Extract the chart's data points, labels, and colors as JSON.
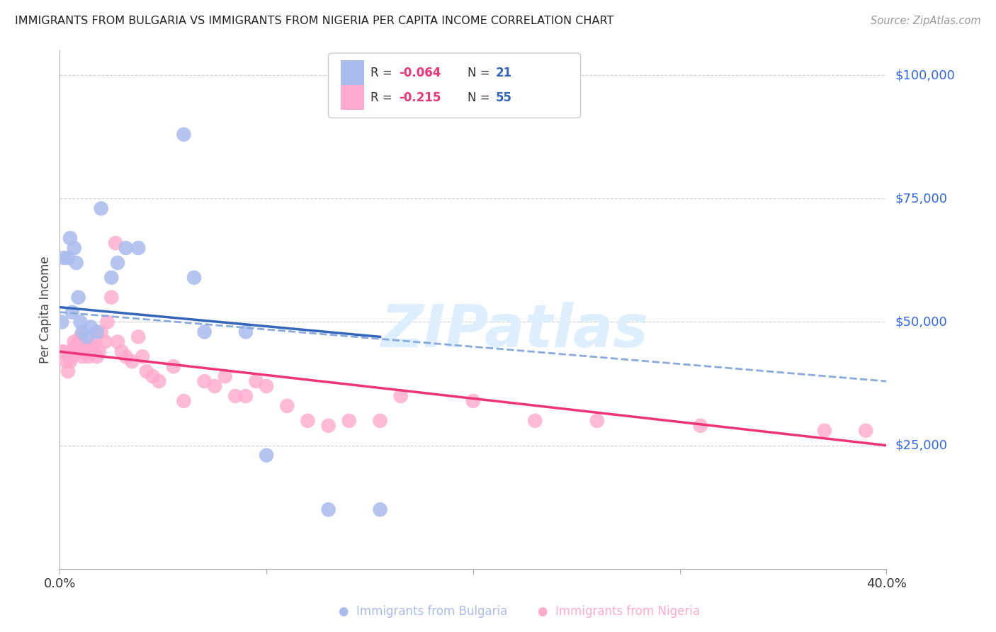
{
  "title": "IMMIGRANTS FROM BULGARIA VS IMMIGRANTS FROM NIGERIA PER CAPITA INCOME CORRELATION CHART",
  "source": "Source: ZipAtlas.com",
  "ylabel": "Per Capita Income",
  "xlim": [
    0,
    0.4
  ],
  "ylim": [
    0,
    105000
  ],
  "ytick_vals": [
    25000,
    50000,
    75000,
    100000
  ],
  "ytick_labels": [
    "$25,000",
    "$50,000",
    "$75,000",
    "$100,000"
  ],
  "bg_color": "#ffffff",
  "grid_color": "#cccccc",
  "bulgaria_color": "#aabbee",
  "nigeria_color": "#ffaacc",
  "bulgaria_trend_color": "#3366bb",
  "nigeria_trend_color": "#ee3377",
  "dashed_color": "#88aadd",
  "watermark_color": "#ddeeff",
  "legend_R_color": "#ee3377",
  "legend_N_color": "#3366bb",
  "legend_text_color": "#333333",
  "title_color": "#222222",
  "source_color": "#999999",
  "yaxis_label_color": "#3366ee",
  "bulgaria_x": [
    0.001,
    0.002,
    0.004,
    0.005,
    0.006,
    0.007,
    0.008,
    0.009,
    0.01,
    0.011,
    0.013,
    0.015,
    0.018,
    0.02,
    0.025,
    0.028,
    0.032,
    0.038,
    0.06,
    0.065,
    0.07,
    0.09,
    0.1,
    0.13,
    0.155
  ],
  "bulgaria_y": [
    50000,
    63000,
    63000,
    67000,
    52000,
    65000,
    62000,
    55000,
    50000,
    48000,
    47000,
    49000,
    48000,
    73000,
    59000,
    62000,
    65000,
    65000,
    88000,
    59000,
    48000,
    48000,
    23000,
    12000,
    12000
  ],
  "nigeria_x": [
    0.001,
    0.002,
    0.003,
    0.004,
    0.005,
    0.006,
    0.007,
    0.007,
    0.008,
    0.009,
    0.01,
    0.011,
    0.012,
    0.013,
    0.014,
    0.015,
    0.016,
    0.017,
    0.018,
    0.019,
    0.02,
    0.022,
    0.023,
    0.025,
    0.027,
    0.028,
    0.03,
    0.032,
    0.035,
    0.038,
    0.04,
    0.042,
    0.045,
    0.048,
    0.055,
    0.06,
    0.07,
    0.075,
    0.08,
    0.085,
    0.09,
    0.095,
    0.1,
    0.11,
    0.12,
    0.13,
    0.14,
    0.155,
    0.165,
    0.2,
    0.23,
    0.26,
    0.31,
    0.37,
    0.39
  ],
  "nigeria_y": [
    44000,
    44000,
    42000,
    40000,
    42000,
    43000,
    46000,
    45000,
    44000,
    46000,
    47000,
    43000,
    44000,
    45000,
    43000,
    44000,
    45000,
    46000,
    43000,
    44000,
    48000,
    46000,
    50000,
    55000,
    66000,
    46000,
    44000,
    43000,
    42000,
    47000,
    43000,
    40000,
    39000,
    38000,
    41000,
    34000,
    38000,
    37000,
    39000,
    35000,
    35000,
    38000,
    37000,
    33000,
    30000,
    29000,
    30000,
    30000,
    35000,
    34000,
    30000,
    30000,
    29000,
    28000,
    28000
  ],
  "bul_line_x0": 0.0,
  "bul_line_y0": 53000,
  "bul_line_x1": 0.155,
  "bul_line_y1": 47000,
  "dash_line_x0": 0.0,
  "dash_line_y0": 52000,
  "dash_line_x1": 0.4,
  "dash_line_y1": 38000,
  "nig_line_x0": 0.0,
  "nig_line_y0": 44000,
  "nig_line_x1": 0.4,
  "nig_line_y1": 25000
}
